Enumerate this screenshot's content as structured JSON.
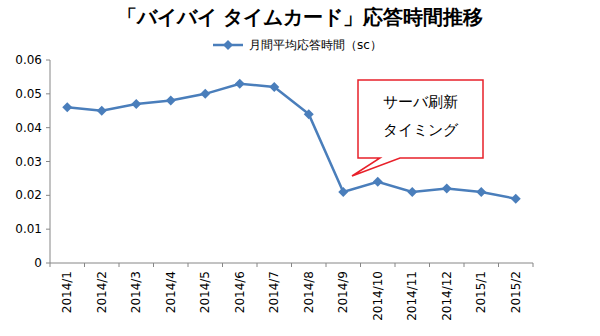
{
  "chart_data": {
    "type": "line",
    "title": "「バイバイ タイムカード」応答時間推移",
    "categories": [
      "2014/1",
      "2014/2",
      "2014/3",
      "2014/4",
      "2014/5",
      "2014/6",
      "2014/7",
      "2014/8",
      "2014/9",
      "2014/10",
      "2014/11",
      "2014/12",
      "2015/1",
      "2015/2"
    ],
    "series": [
      {
        "name": "月間平均応答時間（sc）",
        "color": "#4a7ebb",
        "marker": "diamond",
        "values": [
          0.046,
          0.045,
          0.047,
          0.048,
          0.05,
          0.053,
          0.052,
          0.044,
          0.021,
          0.024,
          0.021,
          0.022,
          0.021,
          0.019
        ]
      }
    ],
    "ylim": [
      0,
      0.06
    ],
    "yticks": [
      0,
      0.01,
      0.02,
      0.03,
      0.04,
      0.05,
      0.06
    ],
    "grid": false,
    "legend": "top",
    "annotation": [
      "サーバ刷新",
      "タイミング"
    ]
  }
}
